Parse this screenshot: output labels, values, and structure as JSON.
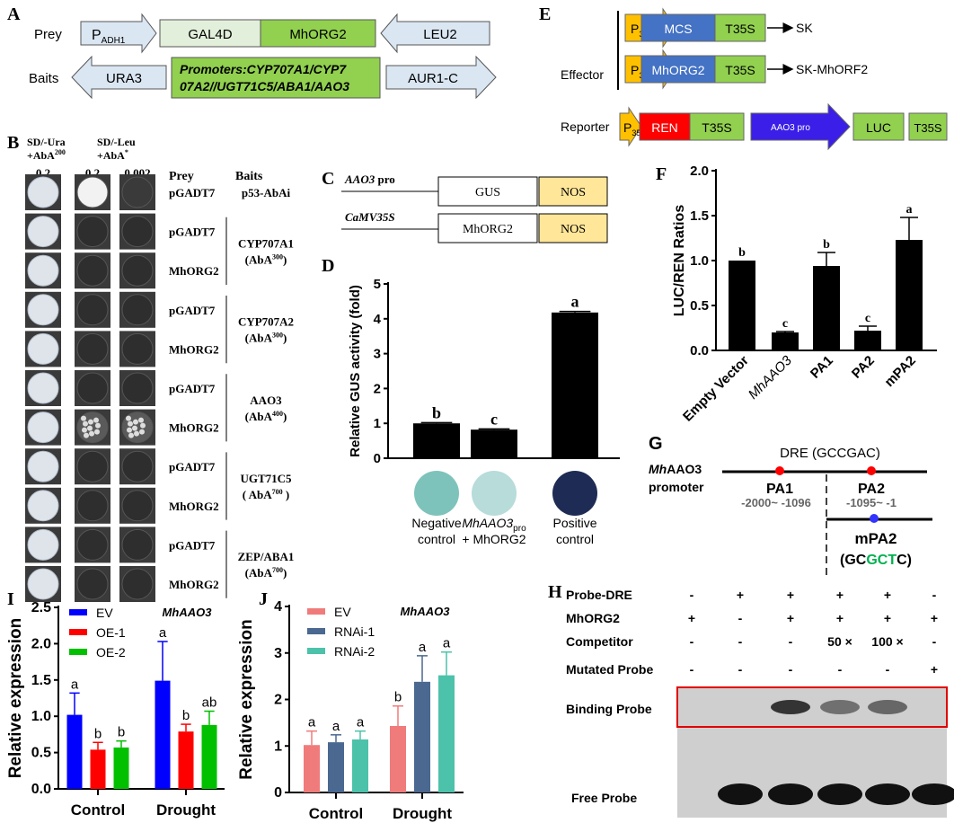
{
  "panel_labels": {
    "A": "A",
    "B": "B",
    "C": "C",
    "D": "D",
    "E": "E",
    "F": "F",
    "G": "G",
    "H": "H",
    "I": "I",
    "J": "J"
  },
  "A": {
    "prey_label": "Prey",
    "baits_label": "Baits",
    "p_adh1": "P",
    "p_adh1_sub": "ADH1",
    "gal4d": "GAL4D",
    "mhorg2": "MhORG2",
    "leu2": "LEU2",
    "ura3": "URA3",
    "promoters_line1": "Promoters:CYP707A1/CYP7",
    "promoters_line2": "07A2//UGT71C5/ABA1/AAO3",
    "aur1c": "AUR1-C"
  },
  "B": {
    "col1_l1": "SD/-Ura",
    "col1_l2": "+AbA",
    "col1_sup": "200",
    "col2_l1": "SD/-Leu",
    "col2_l2": "+AbA",
    "col2_sup": "*",
    "conc": [
      "0.2",
      "0.2",
      "0.002"
    ],
    "prey_header": "Prey",
    "baits_header": "Baits",
    "rows": [
      {
        "prey": "pGADT7",
        "growth": [
          "light",
          "white",
          "dark"
        ]
      },
      {
        "prey": "pGADT7",
        "growth": [
          "light",
          "none",
          "none"
        ]
      },
      {
        "prey": "MhORG2",
        "growth": [
          "light",
          "none",
          "none"
        ]
      },
      {
        "prey": "pGADT7",
        "growth": [
          "light",
          "none",
          "none"
        ]
      },
      {
        "prey": "MhORG2",
        "growth": [
          "light",
          "none",
          "none"
        ]
      },
      {
        "prey": "pGADT7",
        "growth": [
          "light",
          "none",
          "none"
        ]
      },
      {
        "prey": "MhORG2",
        "growth": [
          "light",
          "spotty",
          "spotty"
        ]
      },
      {
        "prey": "pGADT7",
        "growth": [
          "light",
          "none",
          "none"
        ]
      },
      {
        "prey": "MhORG2",
        "growth": [
          "light",
          "none",
          "none"
        ]
      },
      {
        "prey": "pGADT7",
        "growth": [
          "light",
          "none",
          "none"
        ]
      },
      {
        "prey": "MhORG2",
        "growth": [
          "light",
          "none",
          "none"
        ]
      }
    ],
    "baits": [
      {
        "name": "p53-AbAi",
        "sub": ""
      },
      {
        "name": "CYP707A1",
        "sub": "(AbA",
        "sup": "300",
        "end": ")"
      },
      {
        "name": "CYP707A2",
        "sub": "(AbA",
        "sup": "300",
        "end": ")"
      },
      {
        "name": "AAO3",
        "sub": "(AbA",
        "sup": "400",
        "end": ")"
      },
      {
        "name": "UGT71C5",
        "sub": "( AbA",
        "sup": "700",
        "end": " )"
      },
      {
        "name": "ZEP/ABA1",
        "sub": "(AbA",
        "sup": "700",
        "end": ")"
      }
    ]
  },
  "C": {
    "line1_promoter": "AAO3",
    "line1_suffix": " pro",
    "gus": "GUS",
    "nos": "NOS",
    "line2_promoter": "CaMV35S",
    "mhorg2": "MhORG2"
  },
  "E": {
    "effector": "Effector",
    "reporter": "Reporter",
    "p35s": "P",
    "p35s_sub": "35S",
    "mcs": "MCS",
    "t35s": "T35S",
    "sk": "SK",
    "mhorg2": "MhORG2",
    "sk_mhorf2": "SK-MhORF2",
    "ren": "REN",
    "aao3pro": "AAO3 pro",
    "luc": "LUC"
  },
  "G": {
    "promoter_italic": "Mh",
    "promoter_rest": "AAO3",
    "promoter_l2": "promoter",
    "dre": "DRE (GCCGAC)",
    "pa1": "PA1",
    "pa1_range": "-2000~ -1096",
    "pa2": "PA2",
    "pa2_range": "-1095~ -1",
    "mpa2": "mPA2",
    "mut_pre": "(GC",
    "mut_green": "GCT",
    "mut_post": "C)",
    "colors": {
      "dre": "#ff0000",
      "mutant": "#3333ff",
      "green": "#00b050"
    }
  },
  "H": {
    "rows": [
      {
        "label": "Probe-DRE",
        "values": [
          "-",
          "+",
          "+",
          "+",
          "+",
          "-"
        ]
      },
      {
        "label": "MhORG2",
        "values": [
          "+",
          "-",
          "+",
          "+",
          "+",
          "+"
        ]
      },
      {
        "label": "Competitor",
        "values": [
          "-",
          "-",
          "-",
          "50 ×",
          "100 ×",
          "-"
        ]
      },
      {
        "label": "Mutated Probe",
        "values": [
          "-",
          "-",
          "-",
          "-",
          "-",
          "+"
        ]
      }
    ],
    "binding": "Binding Probe",
    "free": "Free Probe",
    "binding_intensity": [
      0,
      0,
      0.9,
      0.55,
      0.6,
      0
    ],
    "free_intensity": [
      0,
      1,
      1,
      1,
      1,
      1
    ]
  },
  "chart_data": [
    {
      "id": "D",
      "type": "bar",
      "ylabel": "Relative GUS activity (fold)",
      "ylim": [
        0,
        5
      ],
      "yticks": [
        "0",
        "1",
        "2",
        "3",
        "4",
        "5"
      ],
      "categories": [
        "Negative control",
        "MhAAO3pro + MhORG2",
        "Positive control"
      ],
      "cat_lines": [
        [
          "Negative",
          "control"
        ],
        [
          "MhAAO3",
          "pro",
          "+ MhORG2"
        ],
        [
          "Positive",
          "control"
        ]
      ],
      "values": [
        1.0,
        0.82,
        4.18
      ],
      "errors": [
        0.02,
        0.02,
        0.03
      ],
      "letters": [
        "b",
        "c",
        "a"
      ],
      "color": "#000000",
      "swatch_colors": [
        "#7ec3bb",
        "#b7dcd9",
        "#1e2c55"
      ]
    },
    {
      "id": "F",
      "type": "bar",
      "ylabel": "LUC/REN Ratios",
      "ylim": [
        0,
        2.0
      ],
      "yticks": [
        "0.0",
        "0.5",
        "1.0",
        "1.5",
        "2.0"
      ],
      "categories": [
        "Empty Vector",
        "MhAAO3",
        "PA1",
        "PA2",
        "mPA2"
      ],
      "values": [
        1.0,
        0.2,
        0.94,
        0.22,
        1.23
      ],
      "errors": [
        0,
        0.01,
        0.15,
        0.05,
        0.25
      ],
      "letters": [
        "b",
        "c",
        "b",
        "c",
        "a"
      ],
      "color": "#000000"
    },
    {
      "id": "I",
      "type": "bar",
      "title": "MhAAO3",
      "ylabel": "Relative expression",
      "ylim": [
        0,
        2.5
      ],
      "yticks": [
        "0.0",
        "0.5",
        "1.0",
        "1.5",
        "2.0",
        "2.5"
      ],
      "categories": [
        "Control",
        "Drought"
      ],
      "series": [
        {
          "name": "EV",
          "color": "#0000ff",
          "values": [
            1.02,
            1.49
          ],
          "errors": [
            0.3,
            0.54
          ],
          "letters": [
            "a",
            "a"
          ]
        },
        {
          "name": "OE-1",
          "color": "#ff0000",
          "values": [
            0.54,
            0.79
          ],
          "errors": [
            0.1,
            0.1
          ],
          "letters": [
            "b",
            "b"
          ]
        },
        {
          "name": "OE-2",
          "color": "#00c000",
          "values": [
            0.57,
            0.88
          ],
          "errors": [
            0.09,
            0.19
          ],
          "letters": [
            "b",
            "ab"
          ]
        }
      ]
    },
    {
      "id": "J",
      "type": "bar",
      "title": "MhAAO3",
      "ylabel": "Relative expression",
      "ylim": [
        0,
        4
      ],
      "yticks": [
        "0",
        "1",
        "2",
        "3",
        "4"
      ],
      "categories": [
        "Control",
        "Drought"
      ],
      "series": [
        {
          "name": "EV",
          "color": "#f07b7b",
          "values": [
            1.02,
            1.43
          ],
          "errors": [
            0.3,
            0.43
          ],
          "letters": [
            "a",
            "b"
          ]
        },
        {
          "name": "RNAi-1",
          "color": "#4a6890",
          "values": [
            1.08,
            2.38
          ],
          "errors": [
            0.16,
            0.56
          ],
          "letters": [
            "a",
            "a"
          ]
        },
        {
          "name": "RNAi-2",
          "color": "#4cc2aa",
          "values": [
            1.14,
            2.52
          ],
          "errors": [
            0.18,
            0.5
          ],
          "letters": [
            "a",
            "a"
          ]
        }
      ]
    }
  ]
}
